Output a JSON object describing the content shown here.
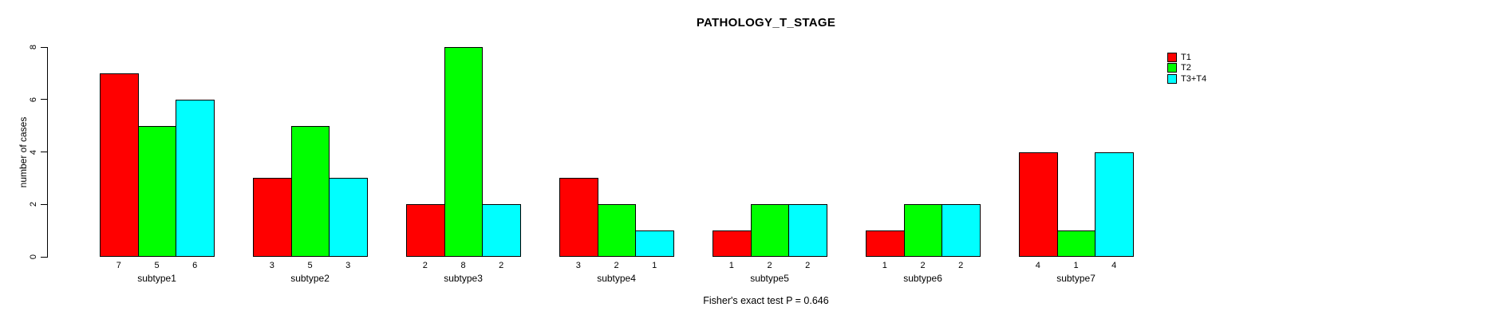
{
  "title": "PATHOLOGY_T_STAGE",
  "footer": "Fisher's exact test P = 0.646",
  "y_axis": {
    "label": "number of cases",
    "ticks": [
      0,
      2,
      4,
      6,
      8
    ]
  },
  "legend": {
    "position": "top-right",
    "items": [
      {
        "label": "T1",
        "color": "#ff0000"
      },
      {
        "label": "T2",
        "color": "#00ff00"
      },
      {
        "label": "T3+T4",
        "color": "#00ffff"
      }
    ]
  },
  "chart_data": {
    "type": "bar",
    "grouped": true,
    "title": "PATHOLOGY_T_STAGE",
    "xlabel": "",
    "ylabel": "number of cases",
    "ylim": [
      0,
      8
    ],
    "grid": false,
    "bar_border_color": "#000000",
    "value_labels_under_bars": true,
    "categories": [
      "subtype1",
      "subtype2",
      "subtype3",
      "subtype4",
      "subtype5",
      "subtype6",
      "subtype7"
    ],
    "series": [
      {
        "name": "T1",
        "color": "#ff0000",
        "values": [
          7,
          3,
          2,
          3,
          1,
          1,
          4
        ]
      },
      {
        "name": "T2",
        "color": "#00ff00",
        "values": [
          5,
          5,
          8,
          2,
          2,
          2,
          1
        ]
      },
      {
        "name": "T3+T4",
        "color": "#00ffff",
        "values": [
          6,
          3,
          2,
          1,
          2,
          2,
          4
        ]
      }
    ],
    "annotation": "Fisher's exact test P = 0.646"
  }
}
